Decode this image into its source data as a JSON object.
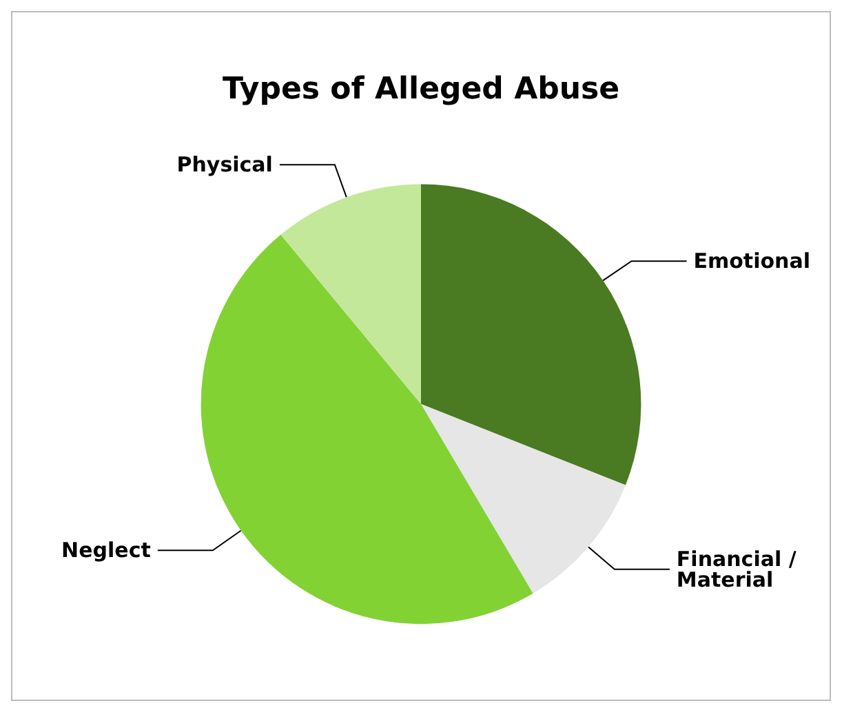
{
  "chart_data": {
    "type": "pie",
    "title": "Types of Alleged Abuse",
    "categories": [
      "Emotional",
      "Financial / Material",
      "Neglect",
      "Physical"
    ],
    "values": [
      31,
      10.5,
      47.5,
      11
    ],
    "colors": [
      "#4a7a22",
      "#e6e6e6",
      "#82d234",
      "#c4e89a"
    ]
  }
}
